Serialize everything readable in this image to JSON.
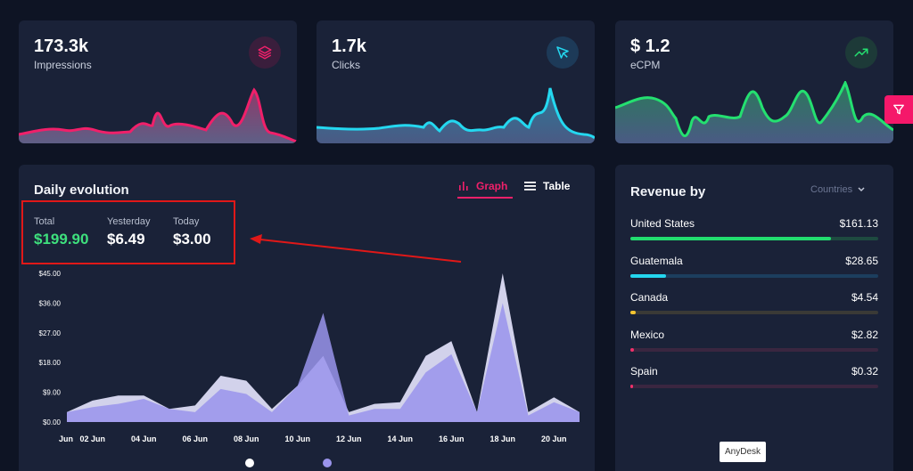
{
  "kpis": [
    {
      "value": "173.3k",
      "label": "Impressions",
      "icon": "layers-icon",
      "color": "#f0206a",
      "icon_bg": "#3a1e3c"
    },
    {
      "value": "1.7k",
      "label": "Clicks",
      "icon": "cursor-icon",
      "color": "#24d8f0",
      "icon_bg": "#1d3a58"
    },
    {
      "value": "$ 1.2",
      "label": "eCPM",
      "icon": "trending-up-icon",
      "color": "#24e070",
      "icon_bg": "#1d3a38"
    }
  ],
  "filter": {
    "icon": "filter-icon"
  },
  "daily": {
    "title": "Daily evolution",
    "tabs": {
      "graph": "Graph",
      "table": "Table"
    },
    "stats": [
      {
        "label": "Total",
        "value": "$199.90",
        "color": "#3ee07d"
      },
      {
        "label": "Yesterday",
        "value": "$6.49",
        "color": "#ffffff"
      },
      {
        "label": "Today",
        "value": "$3.00",
        "color": "#ffffff"
      }
    ]
  },
  "chart_data": {
    "type": "area",
    "x": [
      "01 Jun",
      "02 Jun",
      "03 Jun",
      "04 Jun",
      "05 Jun",
      "06 Jun",
      "07 Jun",
      "08 Jun",
      "09 Jun",
      "10 Jun",
      "11 Jun",
      "12 Jun",
      "13 Jun",
      "14 Jun",
      "15 Jun",
      "16 Jun",
      "17 Jun",
      "18 Jun",
      "19 Jun",
      "20 Jun",
      "21 Jun"
    ],
    "tick_labels": [
      "Jun",
      "02 Jun",
      "04 Jun",
      "06 Jun",
      "08 Jun",
      "10 Jun",
      "12 Jun",
      "14 Jun",
      "16 Jun",
      "18 Jun",
      "20 Jun"
    ],
    "y_ticks": [
      "$0.00",
      "$9.00",
      "$18.00",
      "$27.00",
      "$36.00",
      "$45.00"
    ],
    "ylim": [
      0,
      45
    ],
    "series": [
      {
        "values": [
          3,
          6.5,
          8,
          8,
          4,
          5,
          14,
          12.5,
          4,
          11,
          20,
          3,
          5.5,
          6,
          20,
          24.5,
          3,
          45,
          3,
          7.5,
          3
        ],
        "color": "#dcdcf4"
      },
      {
        "values": [
          3,
          4.5,
          5.5,
          7,
          4,
          3,
          10,
          8.5,
          3,
          11,
          33,
          2,
          4,
          4,
          15,
          20.5,
          3,
          36,
          2,
          6,
          3
        ],
        "color": "#9a94ec"
      }
    ],
    "grid": false,
    "legend": "bottom"
  },
  "revenue": {
    "title": "Revenue by",
    "selector": "Countries",
    "rows": [
      {
        "name": "United States",
        "amount": "$161.13",
        "fraction": 0.81,
        "color": "#22dd6f",
        "track": "#1e4a40"
      },
      {
        "name": "Guatemala",
        "amount": "$28.65",
        "fraction": 0.145,
        "color": "#24d6ee",
        "track": "#1c3e5e"
      },
      {
        "name": "Canada",
        "amount": "$4.54",
        "fraction": 0.023,
        "color": "#f4c430",
        "track": "#3a3a36"
      },
      {
        "name": "Mexico",
        "amount": "$2.82",
        "fraction": 0.014,
        "color": "#f0306a",
        "track": "#3a2640"
      },
      {
        "name": "Spain",
        "amount": "$0.32",
        "fraction": 0.002,
        "color": "#f0306a",
        "track": "#3a2640"
      }
    ]
  },
  "overlay": {
    "anydesk": "AnyDesk"
  }
}
